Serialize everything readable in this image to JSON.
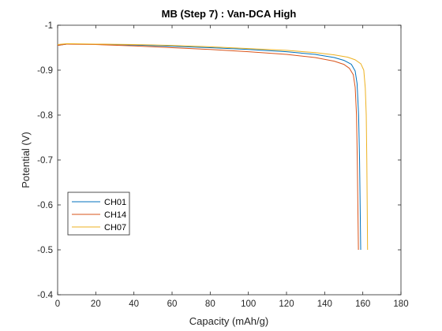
{
  "chart_data": {
    "type": "line",
    "title": "MB (Step 7) : Van-DCA High",
    "xlabel": "Capacity (mAh/g)",
    "ylabel": "Potential (V)",
    "xlim": [
      0,
      180
    ],
    "ylim": [
      -0.4,
      -1.0
    ],
    "y_axis_reversed": true,
    "grid": false,
    "legend_position": "lower-left",
    "x_ticks": [
      0,
      20,
      40,
      60,
      80,
      100,
      120,
      140,
      160,
      180
    ],
    "y_ticks": [
      -1,
      -0.9,
      -0.8,
      -0.7,
      -0.6,
      -0.5,
      -0.4
    ],
    "series": [
      {
        "name": "CH01",
        "color": "#0072BD",
        "points": [
          [
            0,
            -0.955
          ],
          [
            5,
            -0.958
          ],
          [
            20,
            -0.958
          ],
          [
            40,
            -0.956
          ],
          [
            60,
            -0.953
          ],
          [
            80,
            -0.95
          ],
          [
            100,
            -0.946
          ],
          [
            120,
            -0.941
          ],
          [
            135,
            -0.935
          ],
          [
            145,
            -0.928
          ],
          [
            150,
            -0.922
          ],
          [
            154,
            -0.913
          ],
          [
            156,
            -0.898
          ],
          [
            157,
            -0.87
          ],
          [
            157.8,
            -0.8
          ],
          [
            158.3,
            -0.7
          ],
          [
            158.6,
            -0.6
          ],
          [
            158.9,
            -0.5
          ]
        ]
      },
      {
        "name": "CH14",
        "color": "#D95319",
        "points": [
          [
            0,
            -0.955
          ],
          [
            5,
            -0.958
          ],
          [
            20,
            -0.957
          ],
          [
            40,
            -0.954
          ],
          [
            60,
            -0.95
          ],
          [
            80,
            -0.946
          ],
          [
            100,
            -0.941
          ],
          [
            120,
            -0.935
          ],
          [
            135,
            -0.928
          ],
          [
            145,
            -0.92
          ],
          [
            150,
            -0.913
          ],
          [
            153,
            -0.904
          ],
          [
            155,
            -0.89
          ],
          [
            156,
            -0.862
          ],
          [
            156.7,
            -0.8
          ],
          [
            157.1,
            -0.7
          ],
          [
            157.4,
            -0.6
          ],
          [
            157.7,
            -0.5
          ]
        ]
      },
      {
        "name": "CH07",
        "color": "#EDB120",
        "points": [
          [
            0,
            -0.957
          ],
          [
            5,
            -0.959
          ],
          [
            20,
            -0.958
          ],
          [
            40,
            -0.957
          ],
          [
            60,
            -0.955
          ],
          [
            80,
            -0.952
          ],
          [
            100,
            -0.948
          ],
          [
            120,
            -0.944
          ],
          [
            135,
            -0.939
          ],
          [
            145,
            -0.934
          ],
          [
            152,
            -0.929
          ],
          [
            156,
            -0.923
          ],
          [
            159,
            -0.914
          ],
          [
            160.5,
            -0.9
          ],
          [
            161.3,
            -0.86
          ],
          [
            161.8,
            -0.8
          ],
          [
            162.1,
            -0.7
          ],
          [
            162.3,
            -0.6
          ],
          [
            162.5,
            -0.5
          ]
        ]
      }
    ]
  }
}
